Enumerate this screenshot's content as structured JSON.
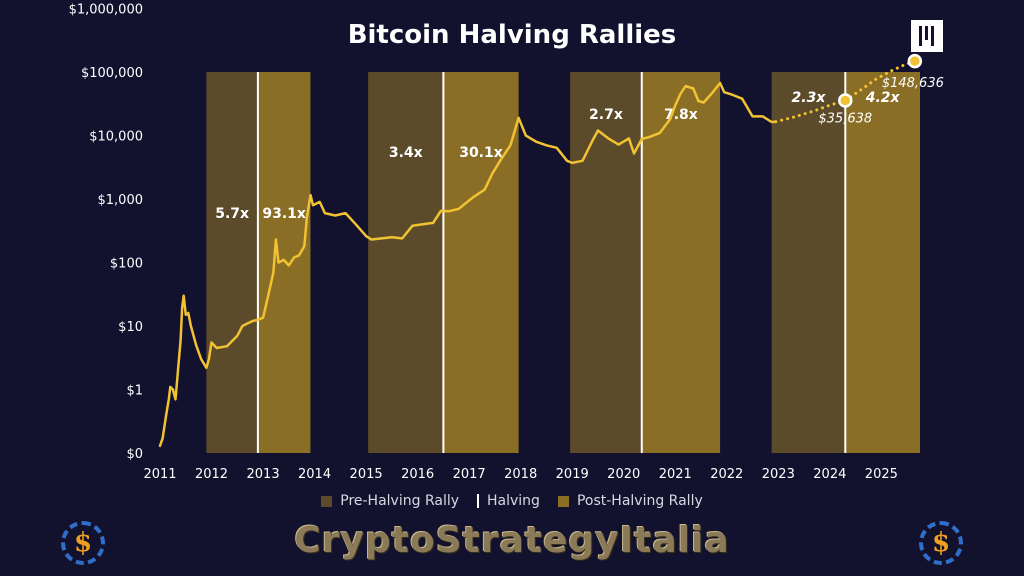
{
  "title": "Bitcoin Halving Rallies",
  "brand_text": "CryptoStrategyItalia",
  "corner_logo_glyph": "$",
  "colors": {
    "background": "#12122e",
    "pre_halving": "#5c4b2a",
    "post_halving": "#8a6e26",
    "line": "#f1c232",
    "halving_line": "#ffffff",
    "text": "#ffffff"
  },
  "legend": {
    "pre": "Pre-Halving Rally",
    "halving": "Halving",
    "post": "Post-Halving Rally"
  },
  "chart_data": {
    "type": "line",
    "title": "Bitcoin Halving Rallies",
    "y_scale": "log",
    "ylim": [
      1,
      1000000
    ],
    "xlim": [
      2011,
      2025.75
    ],
    "x_ticks": [
      2011,
      2012,
      2013,
      2014,
      2015,
      2016,
      2017,
      2018,
      2019,
      2020,
      2021,
      2022,
      2023,
      2024,
      2025
    ],
    "y_ticks": [
      {
        "label": "$0",
        "value": 1
      },
      {
        "label": "$1",
        "value": 10
      },
      {
        "label": "$10",
        "value": 100
      },
      {
        "label": "$100",
        "value": 1000
      },
      {
        "label": "$1,000",
        "value": 10000
      },
      {
        "label": "$10,000",
        "value": 100000
      },
      {
        "label": "$100,000",
        "value": 1000000
      },
      {
        "label": "$1,000,000",
        "value": 10000000
      }
    ],
    "halvings": [
      2012.9,
      2016.5,
      2020.35,
      2024.3
    ],
    "periods": [
      {
        "kind": "pre",
        "start": 2011.9,
        "end": 2012.9,
        "multiplier": "5.7x"
      },
      {
        "kind": "post",
        "start": 2012.9,
        "end": 2013.92,
        "multiplier": "93.1x"
      },
      {
        "kind": "pre",
        "start": 2015.04,
        "end": 2016.5,
        "multiplier": "3.4x"
      },
      {
        "kind": "post",
        "start": 2016.5,
        "end": 2017.96,
        "multiplier": "30.1x"
      },
      {
        "kind": "pre",
        "start": 2018.96,
        "end": 2020.35,
        "multiplier": "2.7x"
      },
      {
        "kind": "post",
        "start": 2020.35,
        "end": 2021.87,
        "multiplier": "7.8x"
      },
      {
        "kind": "pre",
        "start": 2022.87,
        "end": 2024.3,
        "multiplier": "2.3x"
      },
      {
        "kind": "post",
        "start": 2024.3,
        "end": 2025.75,
        "multiplier": "4.2x"
      }
    ],
    "series": [
      {
        "points": [
          [
            2011.0,
            1.3
          ],
          [
            2011.05,
            1.7
          ],
          [
            2011.12,
            4.0
          ],
          [
            2011.17,
            7
          ],
          [
            2011.2,
            11
          ],
          [
            2011.25,
            10
          ],
          [
            2011.3,
            7
          ],
          [
            2011.4,
            60
          ],
          [
            2011.43,
            200
          ],
          [
            2011.46,
            300
          ],
          [
            2011.5,
            150
          ],
          [
            2011.55,
            160
          ],
          [
            2011.6,
            100
          ],
          [
            2011.7,
            50
          ],
          [
            2011.8,
            30
          ],
          [
            2011.9,
            22
          ],
          [
            2011.95,
            30
          ],
          [
            2012.0,
            55
          ],
          [
            2012.1,
            45
          ],
          [
            2012.3,
            48
          ],
          [
            2012.5,
            70
          ],
          [
            2012.6,
            100
          ],
          [
            2012.7,
            110
          ],
          [
            2012.8,
            120
          ],
          [
            2012.9,
            125
          ],
          [
            2013.0,
            135
          ],
          [
            2013.1,
            300
          ],
          [
            2013.2,
            700
          ],
          [
            2013.25,
            2300
          ],
          [
            2013.3,
            1000
          ],
          [
            2013.4,
            1100
          ],
          [
            2013.5,
            900
          ],
          [
            2013.6,
            1200
          ],
          [
            2013.7,
            1300
          ],
          [
            2013.8,
            1800
          ],
          [
            2013.85,
            5000
          ],
          [
            2013.92,
            11500
          ],
          [
            2013.97,
            8000
          ],
          [
            2014.1,
            9000
          ],
          [
            2014.2,
            6000
          ],
          [
            2014.4,
            5500
          ],
          [
            2014.6,
            6000
          ],
          [
            2014.8,
            4000
          ],
          [
            2015.0,
            2600
          ],
          [
            2015.1,
            2300
          ],
          [
            2015.3,
            2400
          ],
          [
            2015.5,
            2500
          ],
          [
            2015.7,
            2400
          ],
          [
            2015.9,
            3800
          ],
          [
            2016.1,
            4000
          ],
          [
            2016.3,
            4200
          ],
          [
            2016.45,
            6500
          ],
          [
            2016.6,
            6400
          ],
          [
            2016.8,
            7000
          ],
          [
            2017.0,
            9500
          ],
          [
            2017.1,
            11000
          ],
          [
            2017.3,
            14000
          ],
          [
            2017.45,
            25000
          ],
          [
            2017.6,
            40000
          ],
          [
            2017.8,
            70000
          ],
          [
            2017.9,
            130000
          ],
          [
            2017.96,
            190000
          ],
          [
            2018.1,
            100000
          ],
          [
            2018.3,
            80000
          ],
          [
            2018.5,
            70000
          ],
          [
            2018.7,
            64000
          ],
          [
            2018.9,
            40000
          ],
          [
            2019.0,
            37000
          ],
          [
            2019.2,
            40000
          ],
          [
            2019.4,
            85000
          ],
          [
            2019.5,
            120000
          ],
          [
            2019.7,
            90000
          ],
          [
            2019.9,
            72000
          ],
          [
            2020.1,
            90000
          ],
          [
            2020.2,
            52000
          ],
          [
            2020.35,
            88000
          ],
          [
            2020.5,
            95000
          ],
          [
            2020.7,
            110000
          ],
          [
            2020.9,
            180000
          ],
          [
            2021.0,
            300000
          ],
          [
            2021.1,
            450000
          ],
          [
            2021.2,
            600000
          ],
          [
            2021.35,
            550000
          ],
          [
            2021.45,
            350000
          ],
          [
            2021.55,
            330000
          ],
          [
            2021.7,
            450000
          ],
          [
            2021.87,
            670000
          ],
          [
            2021.95,
            480000
          ],
          [
            2022.1,
            440000
          ],
          [
            2022.3,
            380000
          ],
          [
            2022.5,
            200000
          ],
          [
            2022.7,
            200000
          ],
          [
            2022.87,
            163000
          ],
          [
            2022.95,
            165000
          ]
        ]
      },
      {
        "style": "dotted",
        "points": [
          [
            2022.95,
            165000
          ],
          [
            2023.3,
            195000
          ],
          [
            2023.7,
            245000
          ],
          [
            2024.0,
            300000
          ],
          [
            2024.3,
            356380
          ],
          [
            2024.6,
            520000
          ],
          [
            2024.9,
            780000
          ],
          [
            2025.2,
            1050000
          ],
          [
            2025.45,
            1300000
          ],
          [
            2025.65,
            1486360
          ]
        ]
      }
    ],
    "annotations": [
      {
        "label": "$35,638",
        "x": 2024.3,
        "y": 356380
      },
      {
        "label": "$148,636",
        "x": 2025.65,
        "y": 1486360
      }
    ]
  }
}
